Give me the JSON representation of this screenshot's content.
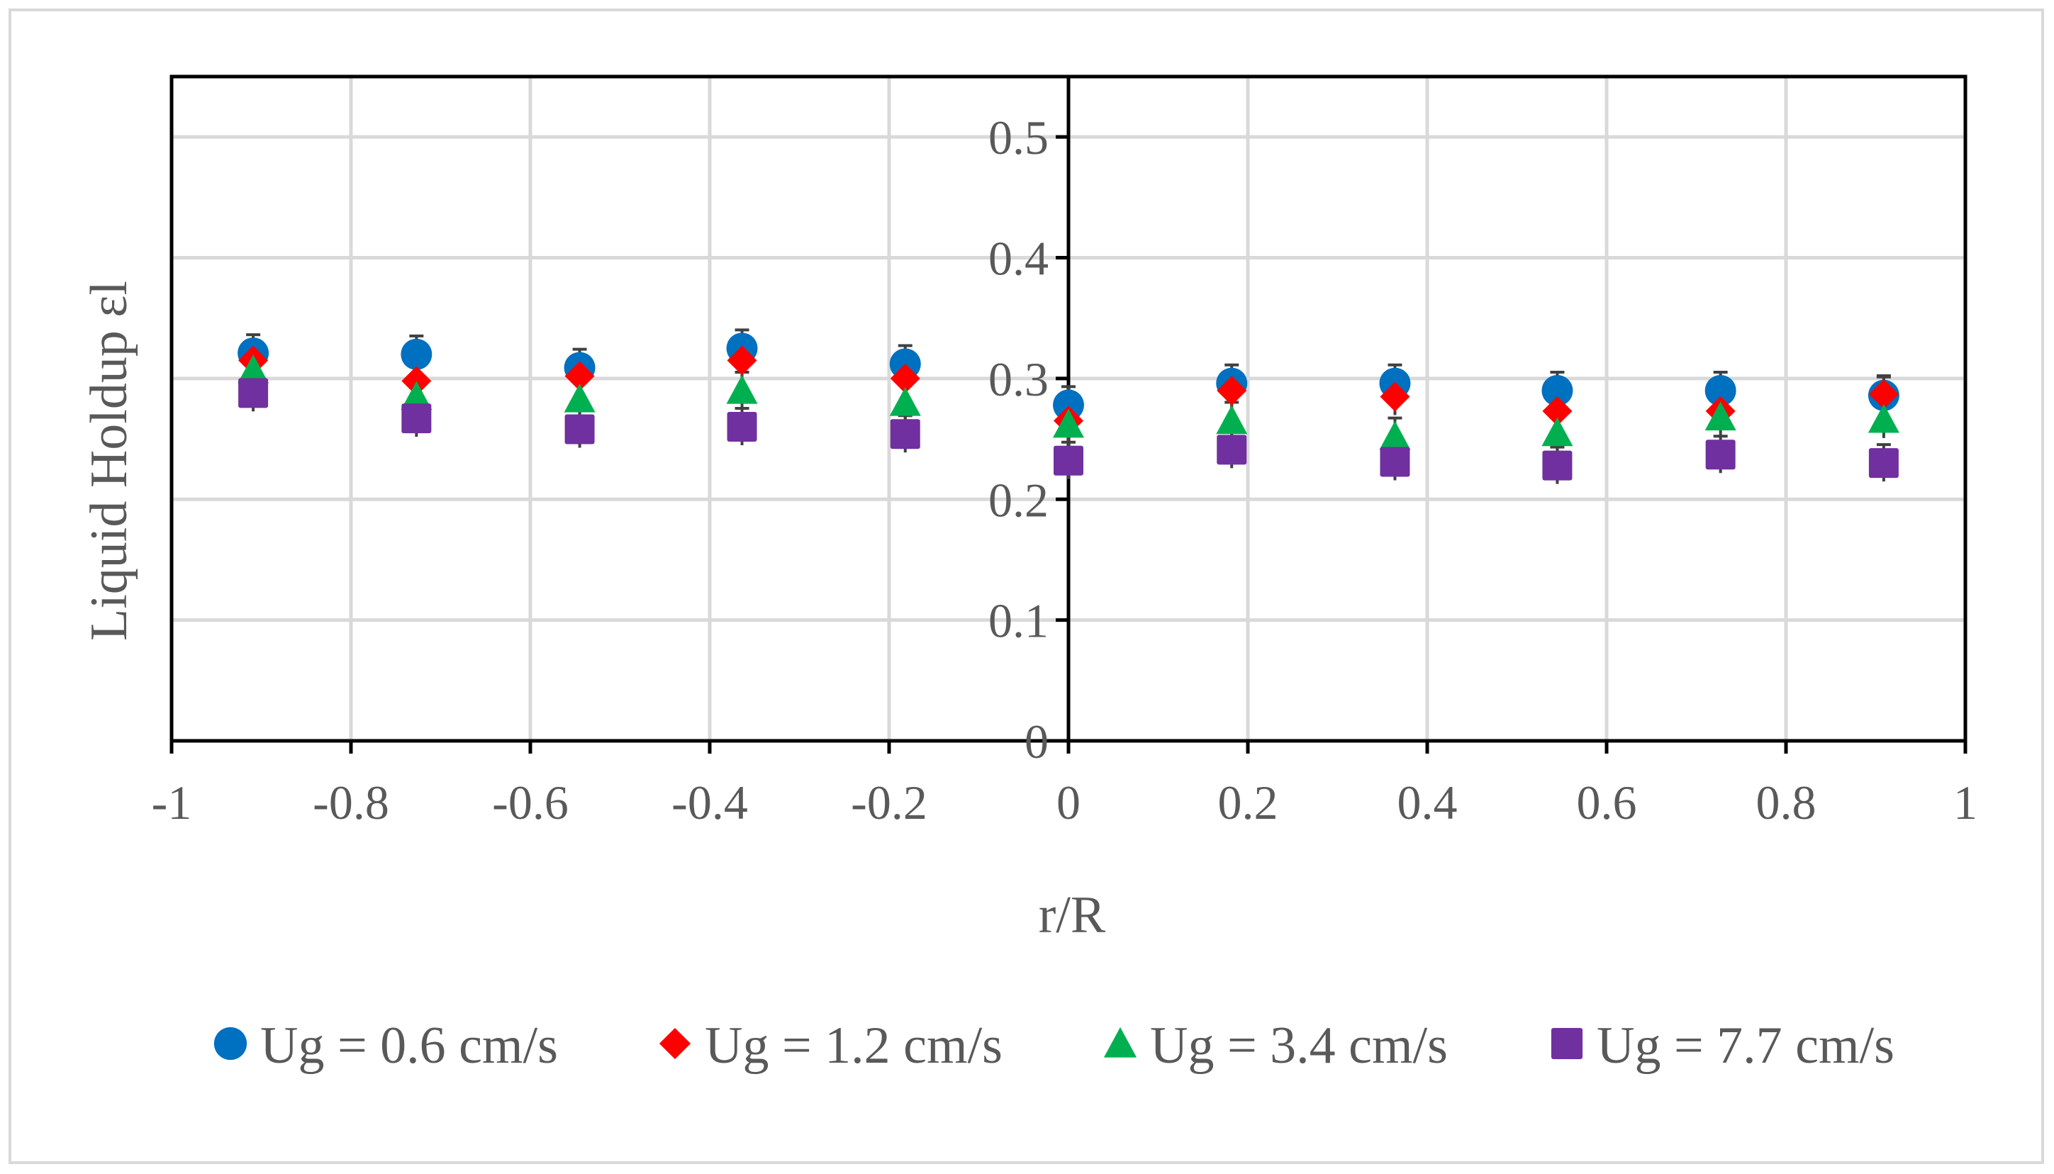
{
  "chart_data": {
    "type": "scatter",
    "title": "",
    "xlabel": "r/R",
    "ylabel": "Liquid Holdup εl",
    "xlim": [
      -1,
      1
    ],
    "ylim": [
      0,
      0.55
    ],
    "x_ticks": [
      "-1",
      "-0.8",
      "-0.6",
      "-0.4",
      "-0.2",
      "0",
      "0.2",
      "0.4",
      "0.6",
      "0.8",
      "1"
    ],
    "x_tick_values": [
      -1,
      -0.8,
      -0.6,
      -0.4,
      -0.2,
      0,
      0.2,
      0.4,
      0.6,
      0.8,
      1
    ],
    "y_ticks": [
      "0",
      "0.1",
      "0.2",
      "0.3",
      "0.4",
      "0.5"
    ],
    "y_tick_values": [
      0,
      0.1,
      0.2,
      0.3,
      0.4,
      0.5
    ],
    "grid": true,
    "legend_position": "bottom",
    "x": [
      -0.909,
      -0.727,
      -0.545,
      -0.364,
      -0.182,
      0,
      0.182,
      0.364,
      0.545,
      0.727,
      0.909
    ],
    "series": [
      {
        "name": "Ug = 0.6 cm/s",
        "marker": "circle",
        "color": "#0070c0",
        "values": [
          0.321,
          0.32,
          0.309,
          0.325,
          0.312,
          0.278,
          0.296,
          0.296,
          0.29,
          0.29,
          0.286
        ]
      },
      {
        "name": "Ug = 1.2 cm/s",
        "marker": "diamond",
        "color": "#ff0000",
        "values": [
          0.315,
          0.298,
          0.302,
          0.315,
          0.3,
          0.265,
          0.29,
          0.285,
          0.273,
          0.273,
          0.287
        ]
      },
      {
        "name": "Ug = 3.4 cm/s",
        "marker": "triangle",
        "color": "#00b050",
        "values": [
          0.307,
          0.285,
          0.283,
          0.29,
          0.28,
          0.262,
          0.265,
          0.252,
          0.255,
          0.268,
          0.266
        ]
      },
      {
        "name": "Ug = 7.7 cm/s",
        "marker": "square",
        "color": "#7030a0",
        "values": [
          0.288,
          0.267,
          0.258,
          0.26,
          0.254,
          0.232,
          0.241,
          0.231,
          0.228,
          0.237,
          0.23
        ]
      }
    ]
  }
}
